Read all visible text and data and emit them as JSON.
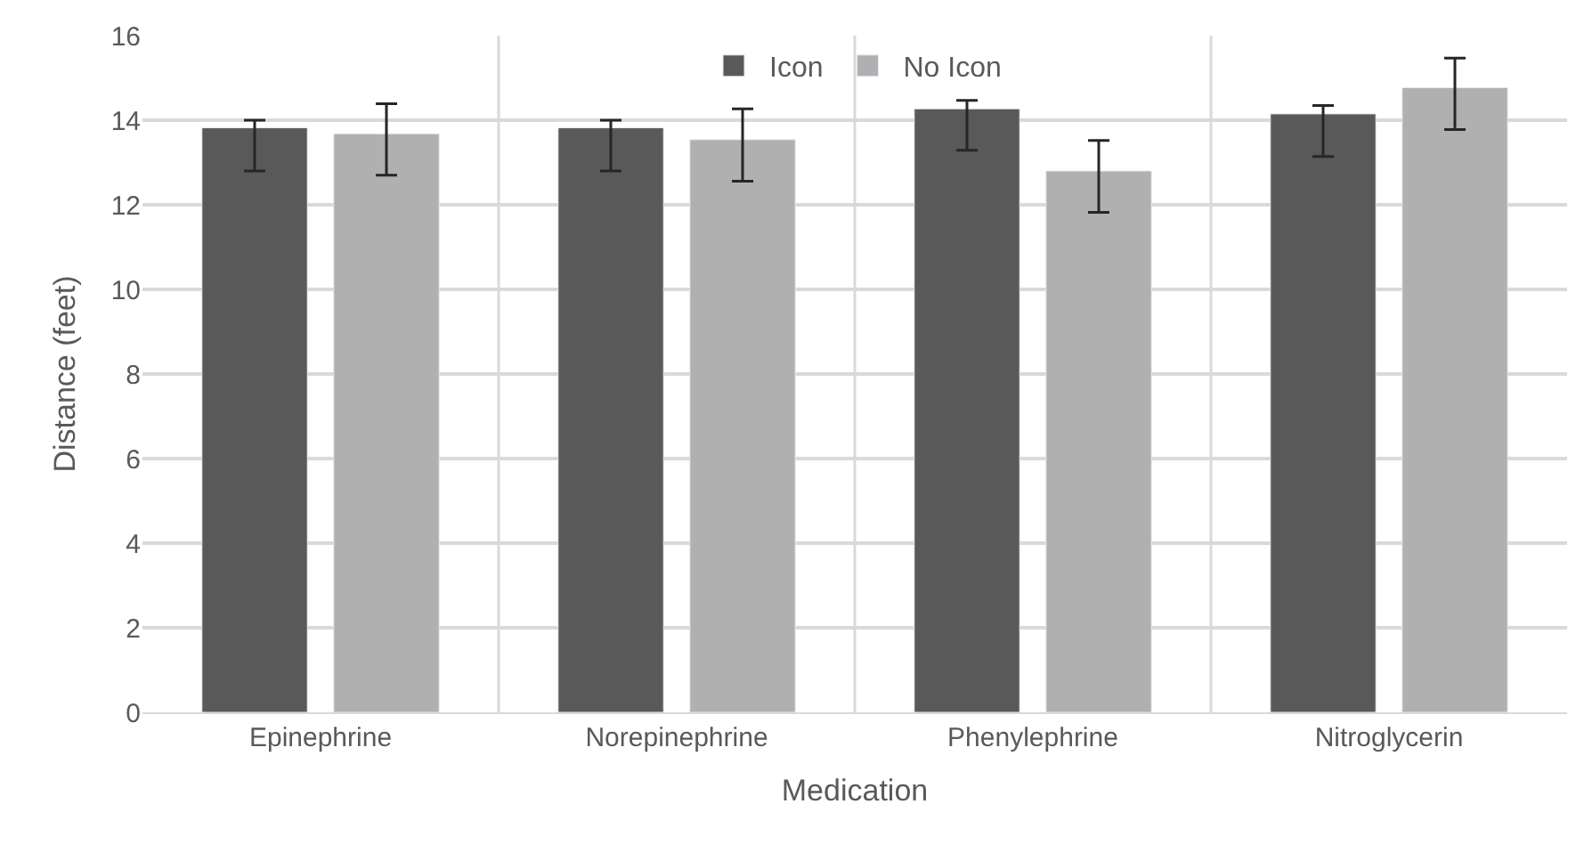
{
  "chart_data": {
    "type": "bar",
    "xlabel": "Medication",
    "ylabel": "Distance (feet)",
    "categories": [
      "Epinephrine",
      "Norepinephrine",
      "Phenylephrine",
      "Nitroglycerin"
    ],
    "series": [
      {
        "name": "Icon",
        "color": "#595959",
        "values": [
          13.82,
          13.82,
          14.27,
          14.15
        ],
        "errors": [
          [
            12.8,
            14.0
          ],
          [
            12.8,
            14.0
          ],
          [
            13.29,
            14.47
          ],
          [
            13.14,
            14.35
          ]
        ]
      },
      {
        "name": "No Icon",
        "color": "#b0b0b0",
        "values": [
          13.68,
          13.54,
          12.8,
          14.77
        ],
        "errors": [
          [
            12.7,
            14.39
          ],
          [
            12.56,
            14.27
          ],
          [
            11.82,
            13.52
          ],
          [
            13.78,
            15.47
          ]
        ]
      }
    ],
    "ylim": [
      0,
      16
    ],
    "yticks": [
      0,
      2,
      4,
      6,
      8,
      10,
      12,
      14,
      16
    ],
    "grid": true,
    "legend": "top"
  }
}
